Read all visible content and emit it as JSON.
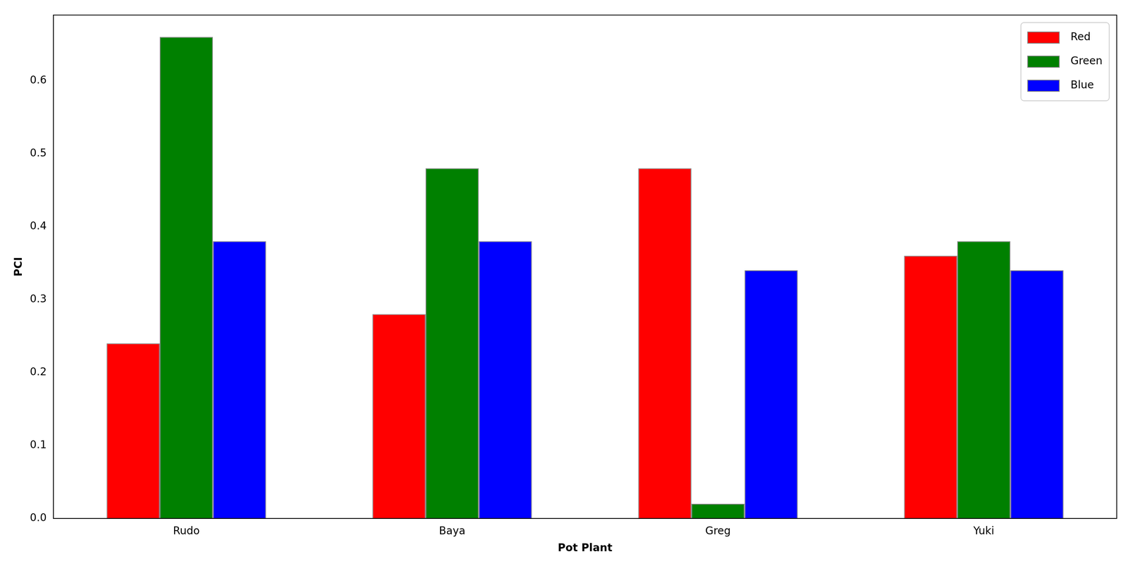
{
  "chart_data": {
    "type": "bar",
    "x_label": "Pot Plant",
    "y_label": "PCI",
    "categories": [
      "Rudo",
      "Baya",
      "Greg",
      "Yuki"
    ],
    "series": [
      {
        "name": "Red",
        "color": "#ff0000",
        "values": [
          0.24,
          0.28,
          0.48,
          0.36
        ]
      },
      {
        "name": "Green",
        "color": "#008000",
        "values": [
          0.66,
          0.48,
          0.02,
          0.38
        ]
      },
      {
        "name": "Blue",
        "color": "#0000ff",
        "values": [
          0.38,
          0.38,
          0.34,
          0.34
        ]
      }
    ],
    "ylim": [
      0,
      0.69
    ],
    "yticks": [
      {
        "value": 0,
        "label": "0.0"
      },
      0.1,
      0.2,
      0.3,
      0.4,
      0.5,
      0.6
    ],
    "grid": false,
    "legend": "upper right"
  }
}
